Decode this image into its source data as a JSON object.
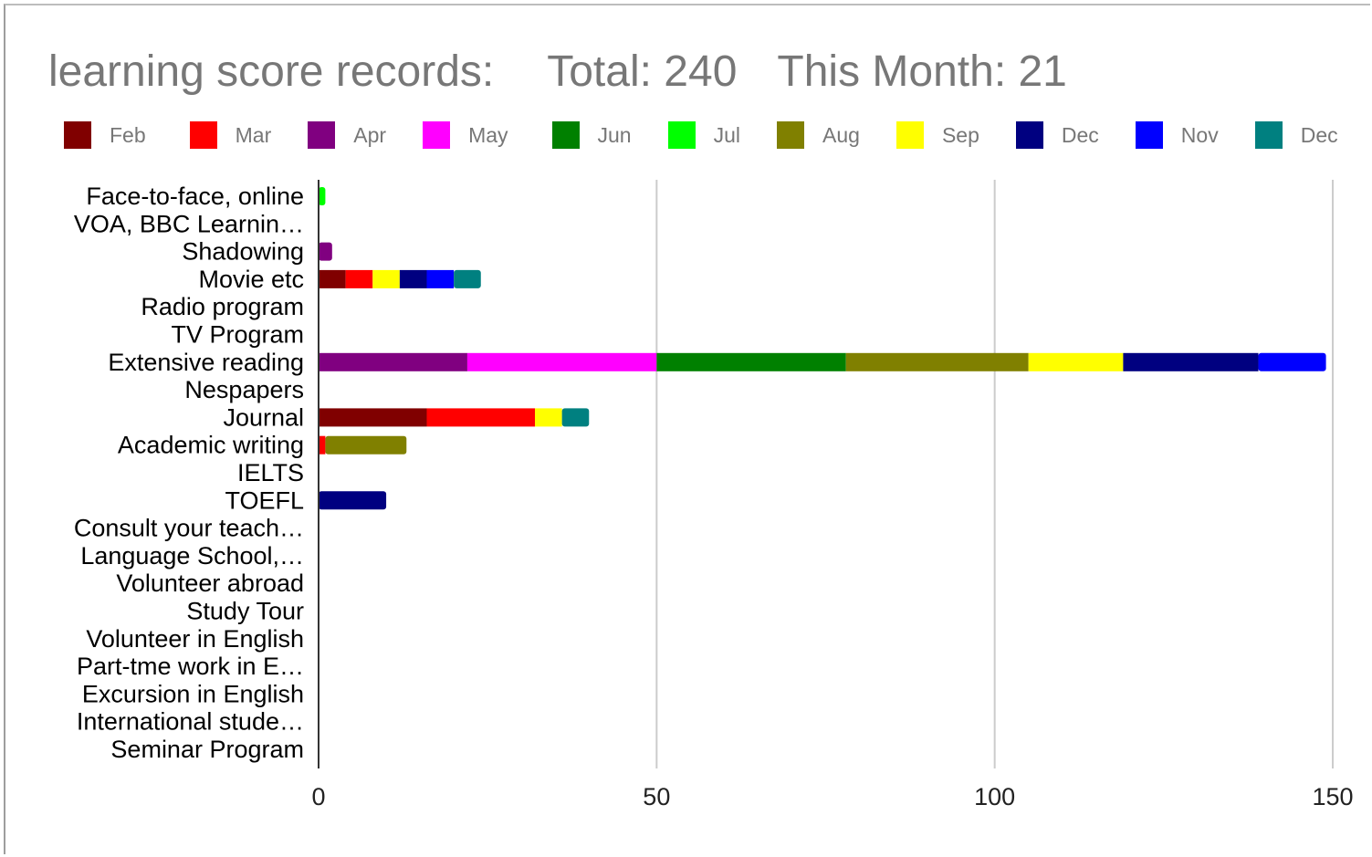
{
  "title": {
    "main": "learning score records:",
    "total": "Total: 240",
    "month": "This Month: 21"
  },
  "legend": [
    {
      "name": "Feb",
      "color": "#800000"
    },
    {
      "name": "Mar",
      "color": "#ff0000"
    },
    {
      "name": "Apr",
      "color": "#800080"
    },
    {
      "name": "May",
      "color": "#ff00ff"
    },
    {
      "name": "Jun",
      "color": "#008000"
    },
    {
      "name": "Jul",
      "color": "#00ff00"
    },
    {
      "name": "Aug",
      "color": "#808000"
    },
    {
      "name": "Sep",
      "color": "#ffff00"
    },
    {
      "name": "Dec",
      "color": "#000080"
    },
    {
      "name": "Nov",
      "color": "#0000ff"
    },
    {
      "name": "Dec",
      "color": "#008080"
    }
  ],
  "chart_data": {
    "type": "bar",
    "orientation": "horizontal",
    "stacked": true,
    "categories": [
      "Face-to-face, online",
      "VOA, BBC Learnin…",
      "Shadowing",
      "Movie etc",
      "Radio program",
      "TV Program",
      "Extensive reading",
      "Nespapers",
      "Journal",
      "Academic writing",
      "IELTS",
      "TOEFL",
      "Consult your teach…",
      "Language School,…",
      "Volunteer abroad",
      "Study Tour",
      "Volunteer in English",
      "Part-tme work in E…",
      "Excursion in English",
      "International stude…",
      "Seminar Program"
    ],
    "series": [
      {
        "name": "Feb",
        "values": [
          0,
          0,
          0,
          4,
          0,
          0,
          0,
          0,
          16,
          0,
          0,
          0,
          0,
          0,
          0,
          0,
          0,
          0,
          0,
          0,
          0
        ]
      },
      {
        "name": "Mar",
        "values": [
          0,
          0,
          0,
          4,
          0,
          0,
          0,
          0,
          16,
          1,
          0,
          0,
          0,
          0,
          0,
          0,
          0,
          0,
          0,
          0,
          0
        ]
      },
      {
        "name": "Apr",
        "values": [
          0,
          0,
          2,
          0,
          0,
          0,
          22,
          0,
          0,
          0,
          0,
          0,
          0,
          0,
          0,
          0,
          0,
          0,
          0,
          0,
          0
        ]
      },
      {
        "name": "May",
        "values": [
          0,
          0,
          0,
          0,
          0,
          0,
          28,
          0,
          0,
          0,
          0,
          0,
          0,
          0,
          0,
          0,
          0,
          0,
          0,
          0,
          0
        ]
      },
      {
        "name": "Jun",
        "values": [
          0,
          0,
          0,
          0,
          0,
          0,
          28,
          0,
          0,
          0,
          0,
          0,
          0,
          0,
          0,
          0,
          0,
          0,
          0,
          0,
          0
        ]
      },
      {
        "name": "Jul",
        "values": [
          1,
          0,
          0,
          0,
          0,
          0,
          0,
          0,
          0,
          0,
          0,
          0,
          0,
          0,
          0,
          0,
          0,
          0,
          0,
          0,
          0
        ]
      },
      {
        "name": "Aug",
        "values": [
          0,
          0,
          0,
          0,
          0,
          0,
          27,
          0,
          0,
          12,
          0,
          0,
          0,
          0,
          0,
          0,
          0,
          0,
          0,
          0,
          0
        ]
      },
      {
        "name": "Sep",
        "values": [
          0,
          0,
          0,
          4,
          0,
          0,
          14,
          0,
          4,
          0,
          0,
          0,
          0,
          0,
          0,
          0,
          0,
          0,
          0,
          0,
          0
        ]
      },
      {
        "name": "Dec",
        "values": [
          0,
          0,
          0,
          4,
          0,
          0,
          20,
          0,
          0,
          0,
          0,
          10,
          0,
          0,
          0,
          0,
          0,
          0,
          0,
          0,
          0
        ]
      },
      {
        "name": "Nov",
        "values": [
          0,
          0,
          0,
          4,
          0,
          0,
          10,
          0,
          0,
          0,
          0,
          0,
          0,
          0,
          0,
          0,
          0,
          0,
          0,
          0,
          0
        ]
      },
      {
        "name": "Dec",
        "values": [
          0,
          0,
          0,
          4,
          0,
          0,
          0,
          0,
          4,
          0,
          0,
          0,
          0,
          0,
          0,
          0,
          0,
          0,
          0,
          0,
          0
        ]
      }
    ],
    "xlim": [
      0,
      150
    ],
    "xticks": [
      0,
      50,
      100,
      150
    ],
    "grid": true,
    "legend_position": "top"
  }
}
